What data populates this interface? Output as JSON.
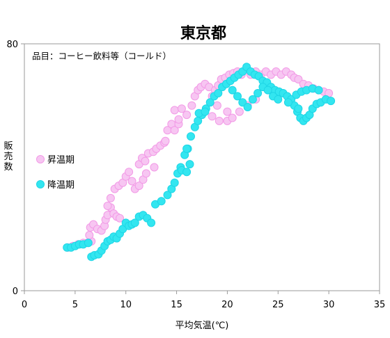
{
  "chart_data": {
    "type": "scatter",
    "title": "東京都",
    "subtitle": "品目：コーヒー飲料等（コールド）",
    "xlabel": "平均気温(℃)",
    "ylabel": "販売数",
    "xlim": [
      0,
      35
    ],
    "ylim": [
      0,
      80
    ],
    "xticks": [
      "0",
      "5",
      "10",
      "15",
      "20",
      "25",
      "30",
      "35"
    ],
    "yticks": [
      "0",
      "80"
    ],
    "grid": false,
    "legend_position": "left",
    "series": [
      {
        "name": "昇温期",
        "color_fill": "#f7c6f2",
        "color_edge": "#f29ae6",
        "points": [
          [
            4.3,
            14
          ],
          [
            4.8,
            14.5
          ],
          [
            5.3,
            15
          ],
          [
            5.8,
            15.5
          ],
          [
            6.2,
            15.5
          ],
          [
            6.6,
            16
          ],
          [
            6.4,
            18
          ],
          [
            6.5,
            20.5
          ],
          [
            6.8,
            21.5
          ],
          [
            7.2,
            20
          ],
          [
            7.6,
            19.5
          ],
          [
            7.9,
            21
          ],
          [
            8.0,
            23
          ],
          [
            8.2,
            24.5
          ],
          [
            8.5,
            27
          ],
          [
            8.8,
            25
          ],
          [
            9.1,
            24
          ],
          [
            9.4,
            23.5
          ],
          [
            8.2,
            27.5
          ],
          [
            8.5,
            30
          ],
          [
            8.9,
            33
          ],
          [
            9.3,
            34
          ],
          [
            9.7,
            35
          ],
          [
            10.0,
            37
          ],
          [
            10.3,
            38.5
          ],
          [
            10.6,
            35.5
          ],
          [
            10.9,
            33
          ],
          [
            11.3,
            34
          ],
          [
            11.7,
            36
          ],
          [
            12.0,
            38
          ],
          [
            11.3,
            41
          ],
          [
            11.6,
            43
          ],
          [
            11.9,
            42
          ],
          [
            12.2,
            44.5
          ],
          [
            12.7,
            45
          ],
          [
            13.0,
            46
          ],
          [
            13.4,
            47
          ],
          [
            13.8,
            48
          ],
          [
            14.1,
            52
          ],
          [
            14.5,
            54
          ],
          [
            14.8,
            52
          ],
          [
            15.2,
            54
          ],
          [
            16.0,
            57
          ],
          [
            16.5,
            60
          ],
          [
            16.8,
            63
          ],
          [
            17.1,
            65
          ],
          [
            17.4,
            66
          ],
          [
            17.8,
            67
          ],
          [
            18.2,
            66
          ],
          [
            18.5,
            63
          ],
          [
            18.8,
            65
          ],
          [
            19.1,
            66.5
          ],
          [
            19.4,
            68.5
          ],
          [
            19.8,
            69
          ],
          [
            20.2,
            70
          ],
          [
            20.6,
            70.5
          ],
          [
            21.0,
            71
          ],
          [
            21.4,
            70
          ],
          [
            21.8,
            71.5
          ],
          [
            22.3,
            70
          ],
          [
            22.8,
            71
          ],
          [
            23.3,
            70
          ],
          [
            23.8,
            71
          ],
          [
            24.3,
            70
          ],
          [
            24.8,
            71
          ],
          [
            25.3,
            70
          ],
          [
            25.8,
            71
          ],
          [
            26.3,
            70
          ],
          [
            26.6,
            69
          ],
          [
            27.0,
            68.5
          ],
          [
            27.5,
            67
          ],
          [
            28.0,
            66.5
          ],
          [
            28.5,
            65.5
          ],
          [
            29.0,
            65
          ],
          [
            29.5,
            64.5
          ],
          [
            30.0,
            64
          ],
          [
            20.0,
            55
          ],
          [
            20.5,
            56
          ],
          [
            21.2,
            58
          ],
          [
            22.0,
            60
          ],
          [
            22.8,
            62
          ],
          [
            18.5,
            56.5
          ],
          [
            19.2,
            55
          ],
          [
            20.0,
            58
          ],
          [
            19.0,
            60
          ],
          [
            17.5,
            57
          ],
          [
            14.8,
            58.5
          ],
          [
            15.5,
            59
          ],
          [
            15.2,
            55.5
          ],
          [
            13.9,
            48.5
          ],
          [
            12.8,
            40
          ]
        ]
      },
      {
        "name": "降温期",
        "color_fill": "#33e6f0",
        "color_edge": "#1fd6e6",
        "points": [
          [
            4.2,
            14
          ],
          [
            4.6,
            14
          ],
          [
            5.0,
            14.5
          ],
          [
            5.4,
            15
          ],
          [
            5.8,
            15
          ],
          [
            6.3,
            15.5
          ],
          [
            6.6,
            11
          ],
          [
            6.9,
            11.5
          ],
          [
            7.3,
            11.8
          ],
          [
            7.6,
            13
          ],
          [
            7.9,
            14.5
          ],
          [
            8.2,
            16
          ],
          [
            8.5,
            16.5
          ],
          [
            8.8,
            17.5
          ],
          [
            9.1,
            17
          ],
          [
            9.4,
            18.5
          ],
          [
            9.7,
            20
          ],
          [
            10.0,
            22
          ],
          [
            10.3,
            21
          ],
          [
            10.6,
            21.5
          ],
          [
            10.9,
            22
          ],
          [
            11.3,
            24
          ],
          [
            11.7,
            24.5
          ],
          [
            12.1,
            23.5
          ],
          [
            12.5,
            22
          ],
          [
            12.9,
            28
          ],
          [
            13.5,
            29
          ],
          [
            14.1,
            31
          ],
          [
            14.5,
            33
          ],
          [
            14.8,
            35
          ],
          [
            15.1,
            38
          ],
          [
            15.4,
            40
          ],
          [
            15.8,
            44
          ],
          [
            16.1,
            46
          ],
          [
            16.4,
            50
          ],
          [
            16.8,
            53
          ],
          [
            17.1,
            55
          ],
          [
            17.5,
            57
          ],
          [
            17.9,
            59
          ],
          [
            18.3,
            61
          ],
          [
            18.7,
            63
          ],
          [
            19.1,
            64
          ],
          [
            19.5,
            66
          ],
          [
            19.9,
            67
          ],
          [
            20.3,
            68
          ],
          [
            20.7,
            69
          ],
          [
            21.1,
            70
          ],
          [
            21.5,
            71
          ],
          [
            21.9,
            72.5
          ],
          [
            22.3,
            71
          ],
          [
            22.7,
            70
          ],
          [
            23.1,
            69.5
          ],
          [
            23.5,
            68
          ],
          [
            23.9,
            67.5
          ],
          [
            24.3,
            66
          ],
          [
            24.7,
            65
          ],
          [
            25.1,
            64.5
          ],
          [
            25.5,
            64
          ],
          [
            25.9,
            63
          ],
          [
            26.3,
            62
          ],
          [
            26.6,
            60
          ],
          [
            26.9,
            58
          ],
          [
            27.2,
            56
          ],
          [
            27.5,
            55
          ],
          [
            27.8,
            56
          ],
          [
            28.1,
            57
          ],
          [
            28.4,
            59
          ],
          [
            28.8,
            60.5
          ],
          [
            29.2,
            61
          ],
          [
            29.7,
            62
          ],
          [
            30.2,
            61.5
          ],
          [
            20.5,
            65
          ],
          [
            21.0,
            63
          ],
          [
            21.5,
            61
          ],
          [
            22.0,
            59.5
          ],
          [
            22.5,
            62
          ],
          [
            23.0,
            64
          ],
          [
            23.5,
            66
          ],
          [
            24.0,
            65
          ],
          [
            24.5,
            63
          ],
          [
            25.0,
            62
          ],
          [
            26.0,
            61
          ],
          [
            27.0,
            59
          ],
          [
            26.8,
            63.5
          ],
          [
            27.3,
            64.5
          ],
          [
            27.8,
            65
          ],
          [
            28.4,
            65.5
          ],
          [
            29.0,
            65
          ],
          [
            15.5,
            39
          ],
          [
            16.0,
            38.5
          ],
          [
            16.3,
            41
          ],
          [
            16.0,
            46
          ],
          [
            17.2,
            57.5
          ],
          [
            17.8,
            58
          ]
        ]
      }
    ]
  }
}
